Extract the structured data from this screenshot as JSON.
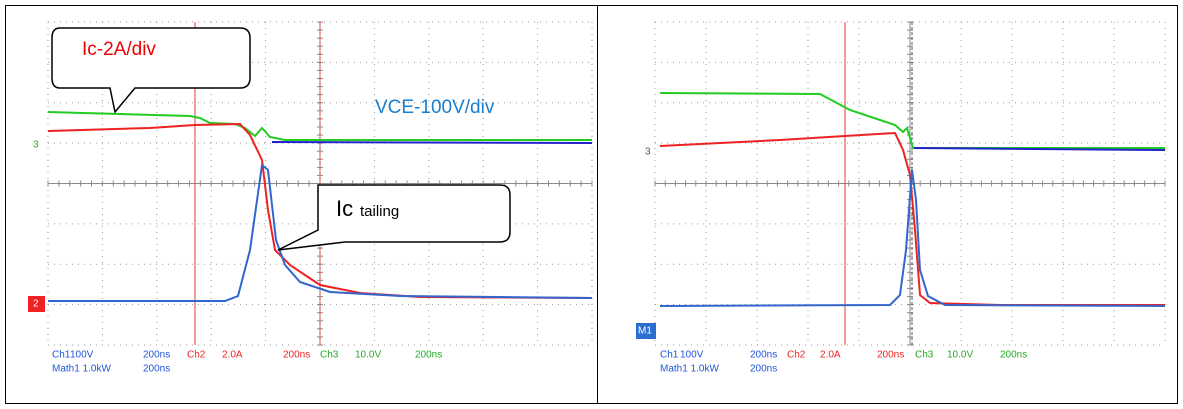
{
  "panels": [
    {
      "annotations": {
        "current_scale": "Ic-2A/div",
        "voltage_scale": "VCE-100V/div",
        "tail_main": "Ic",
        "tail_sub": "tailing"
      },
      "markers": [
        "3",
        "2"
      ],
      "status": {
        "row1": [
          "Ch1",
          "100V",
          "200ns",
          "Ch2",
          "2.0A",
          "200ns",
          "Ch3",
          "10.0V",
          "200ns"
        ],
        "row2": [
          "Math1 1.0kW",
          "200ns"
        ]
      }
    },
    {
      "markers": [
        "3",
        "M1"
      ],
      "status": {
        "row1": [
          "Ch1",
          "100V",
          "200ns",
          "Ch2",
          "2.0A",
          "200ns",
          "Ch3",
          "10.0V",
          "200ns"
        ],
        "row2": [
          "Math1 1.0kW",
          "200ns"
        ]
      }
    }
  ]
}
